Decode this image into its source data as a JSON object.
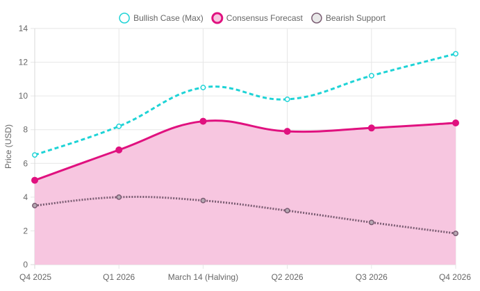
{
  "chart_data": {
    "type": "line",
    "categories": [
      "Q4 2025",
      "Q1 2026",
      "March 14 (Halving)",
      "Q2 2026",
      "Q3 2026",
      "Q4 2026"
    ],
    "ylabel": "Price (USD)",
    "xlabel": "",
    "ylim": [
      0,
      14
    ],
    "yticks": [
      0,
      2,
      4,
      6,
      8,
      10,
      12,
      14
    ],
    "grid": true,
    "legend_position": "top",
    "series": [
      {
        "name": "Bullish Case (Max)",
        "values": [
          6.5,
          8.2,
          10.5,
          9.8,
          11.2,
          12.5
        ],
        "color": "#1ed3d6",
        "style": "dashed",
        "fill": false
      },
      {
        "name": "Consensus Forecast",
        "values": [
          5.0,
          6.8,
          8.5,
          7.9,
          8.1,
          8.4
        ],
        "color": "#e0117f",
        "fill_color": "#f7c6e0",
        "style": "solid",
        "fill": true
      },
      {
        "name": "Bearish Support",
        "values": [
          3.5,
          4.0,
          3.8,
          3.2,
          2.5,
          1.85
        ],
        "color": "#7a5c72",
        "style": "dotted",
        "fill": false
      }
    ]
  }
}
